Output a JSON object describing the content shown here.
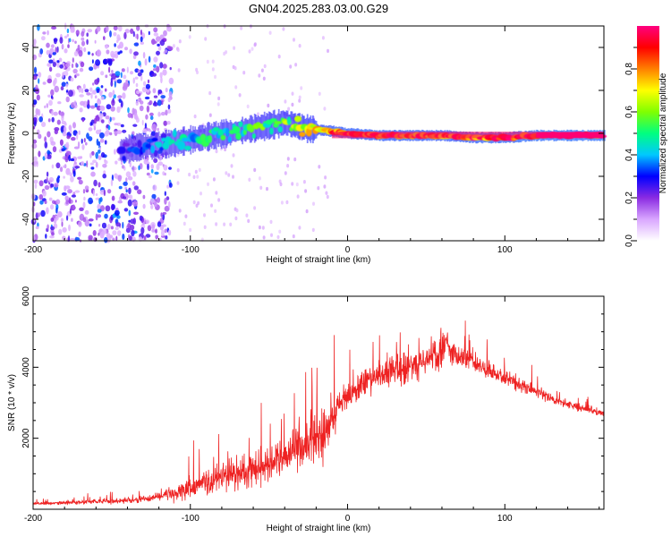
{
  "title": "GN04.2025.283.03.00.G29",
  "chart_data": [
    {
      "type": "heatmap",
      "name": "spectrogram",
      "xlabel": "Height of straight line (km)",
      "ylabel": "Frequency (Hz)",
      "xlim": [
        -200,
        163
      ],
      "ylim": [
        -50,
        50
      ],
      "xticks": [
        "-200",
        "-100",
        "0",
        "100"
      ],
      "xtick_values": [
        -200,
        -100,
        0,
        100
      ],
      "yticks": [
        "-40",
        "-20",
        "0",
        "20",
        "40"
      ],
      "ytick_values": [
        -40,
        -20,
        0,
        20,
        40
      ],
      "colorbar": {
        "label": "Normalized spectral amplitude",
        "range": [
          0,
          1
        ],
        "ticks": [
          "0.0",
          "0.2",
          "0.4",
          "0.6",
          "0.8"
        ],
        "tick_values": [
          0.0,
          0.2,
          0.4,
          0.6,
          0.8
        ],
        "colors": [
          "#ffffff",
          "#d9a6ff",
          "#8a2be2",
          "#0000ff",
          "#00c8ff",
          "#00ff80",
          "#80ff00",
          "#ffff00",
          "#ff8000",
          "#ff0000",
          "#ff0080"
        ]
      },
      "ridge": {
        "x": [
          -145,
          -130,
          -115,
          -100,
          -85,
          -70,
          -55,
          -40,
          -25,
          -10,
          0,
          20,
          40,
          60,
          80,
          100,
          120,
          140,
          163
        ],
        "freq": [
          -8,
          -6,
          -5,
          -3,
          -1,
          1,
          3,
          5,
          2,
          1,
          0,
          -1,
          -1,
          -1,
          -2,
          -2,
          -1,
          -1,
          -1
        ],
        "amplitude": [
          0.25,
          0.35,
          0.4,
          0.45,
          0.5,
          0.5,
          0.55,
          0.6,
          0.7,
          0.85,
          0.9,
          0.9,
          0.88,
          0.85,
          0.9,
          0.95,
          0.98,
          1.0,
          1.0
        ]
      }
    },
    {
      "type": "line",
      "name": "snr",
      "xlabel": "Height of straight line (km)",
      "ylabel": "SNR (10 * v/v)",
      "xlim": [
        -200,
        163
      ],
      "ylim": [
        0,
        6000
      ],
      "xticks": [
        "-200",
        "-100",
        "0",
        "100"
      ],
      "xtick_values": [
        -200,
        -100,
        0,
        100
      ],
      "yticks": [
        "2000",
        "4000",
        "6000"
      ],
      "ytick_values": [
        2000,
        4000,
        6000
      ],
      "color": "#ee2222",
      "x": [
        -200,
        -180,
        -160,
        -140,
        -125,
        -115,
        -100,
        -85,
        -70,
        -55,
        -40,
        -30,
        -20,
        -12,
        -8,
        -5,
        0,
        10,
        20,
        30,
        40,
        50,
        60,
        62,
        70,
        80,
        90,
        100,
        110,
        120,
        130,
        140,
        150,
        163
      ],
      "y": [
        150,
        180,
        220,
        250,
        300,
        400,
        600,
        800,
        1000,
        1200,
        1500,
        1800,
        2000,
        2200,
        2800,
        3000,
        3200,
        3500,
        3800,
        3900,
        4000,
        4200,
        4500,
        4700,
        4300,
        4100,
        3900,
        3700,
        3500,
        3300,
        3100,
        2950,
        2850,
        2700
      ],
      "spread": [
        60,
        80,
        100,
        120,
        150,
        250,
        450,
        600,
        700,
        800,
        900,
        1000,
        1100,
        1300,
        800,
        600,
        600,
        600,
        650,
        700,
        650,
        650,
        750,
        800,
        550,
        450,
        400,
        350,
        300,
        250,
        200,
        180,
        160,
        150
      ]
    }
  ]
}
